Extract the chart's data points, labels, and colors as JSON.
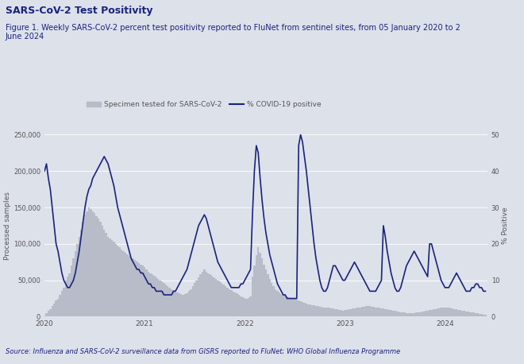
{
  "title": "SARS-CoV-2 Test Positivity",
  "subtitle": "Figure 1. Weekly SARS-CoV-2 percent test positivity reported to FluNet from sentinel sites, from 05 January 2020 to 2\nJune 2024",
  "source_text": "Source: Influenza and SARS-CoV-2 surveillance data from GISRS reported to FluNet; WHO Global Influenza Programme",
  "ylabel_left": "Processed samples",
  "ylabel_right": "% Positive",
  "legend_bar": "Specimen tested for SARS-CoV-2",
  "legend_line": "% COVID-19 positive",
  "bg_color": "#dde1ea",
  "bar_color": "#b8bcc8",
  "line_color": "#1a237e",
  "title_color": "#1a237e",
  "subtitle_color": "#1a237e",
  "source_color": "#1a237e",
  "tick_color": "#555555",
  "grid_color": "#ffffff",
  "ylim_left": [
    0,
    250000
  ],
  "ylim_right": [
    0,
    50
  ],
  "yticks_left": [
    0,
    50000,
    100000,
    150000,
    200000,
    250000
  ],
  "yticks_right": [
    0,
    10,
    20,
    30,
    40,
    50
  ],
  "xtick_labels": [
    "2020",
    "2021",
    "2022",
    "2023",
    "2024"
  ],
  "year_positions": [
    0,
    52,
    104,
    156,
    208
  ],
  "n_weeks": 230,
  "bar_data": [
    2000,
    5000,
    8000,
    10000,
    15000,
    18000,
    22000,
    25000,
    30000,
    35000,
    40000,
    50000,
    55000,
    60000,
    70000,
    80000,
    90000,
    100000,
    110000,
    120000,
    130000,
    140000,
    145000,
    150000,
    148000,
    145000,
    142000,
    138000,
    135000,
    130000,
    125000,
    120000,
    115000,
    110000,
    108000,
    105000,
    103000,
    100000,
    98000,
    95000,
    92000,
    90000,
    88000,
    86000,
    84000,
    82000,
    80000,
    78000,
    76000,
    74000,
    72000,
    70000,
    68000,
    65000,
    62000,
    60000,
    58000,
    56000,
    54000,
    52000,
    50000,
    48000,
    46000,
    44000,
    42000,
    40000,
    38000,
    36000,
    34000,
    33000,
    32000,
    31000,
    30000,
    31000,
    32000,
    35000,
    38000,
    42000,
    46000,
    50000,
    54000,
    58000,
    62000,
    65000,
    62000,
    60000,
    58000,
    56000,
    54000,
    52000,
    50000,
    48000,
    46000,
    44000,
    42000,
    40000,
    38000,
    36000,
    34000,
    33000,
    32000,
    30000,
    28000,
    27000,
    26000,
    25000,
    26000,
    28000,
    55000,
    70000,
    85000,
    95000,
    88000,
    80000,
    72000,
    65000,
    58000,
    52000,
    46000,
    42000,
    38000,
    35000,
    33000,
    31000,
    30000,
    29000,
    28000,
    27000,
    26000,
    25000,
    24000,
    23000,
    22000,
    21000,
    20000,
    19000,
    18000,
    17000,
    17000,
    16000,
    16000,
    15000,
    15000,
    14000,
    14000,
    13000,
    13000,
    12000,
    12000,
    11000,
    11000,
    10500,
    10000,
    9500,
    9000,
    8500,
    9000,
    9500,
    10000,
    10500,
    11000,
    11500,
    12000,
    12500,
    13000,
    13500,
    14000,
    14500,
    15000,
    14500,
    14000,
    13500,
    13000,
    12500,
    12000,
    11500,
    11000,
    10500,
    10000,
    9500,
    9000,
    8500,
    8000,
    7500,
    7000,
    6500,
    6000,
    5500,
    5000,
    5000,
    5000,
    5000,
    5000,
    5500,
    6000,
    6500,
    7000,
    7500,
    8000,
    8500,
    9000,
    9500,
    10000,
    10500,
    11000,
    11500,
    12000,
    12500,
    13000,
    12500,
    12000,
    11500,
    11000,
    10500,
    10000,
    9500,
    9000,
    8500,
    8000,
    7500,
    7000,
    6500,
    6000,
    5500,
    5000,
    4500,
    4000,
    3500,
    3000,
    3000
  ],
  "line_data": [
    40,
    42,
    38,
    35,
    30,
    25,
    20,
    18,
    15,
    12,
    10,
    9,
    8,
    8,
    9,
    10,
    12,
    15,
    18,
    22,
    26,
    30,
    33,
    35,
    36,
    38,
    39,
    40,
    41,
    42,
    43,
    44,
    43,
    42,
    40,
    38,
    36,
    33,
    30,
    28,
    26,
    24,
    22,
    20,
    18,
    16,
    15,
    14,
    13,
    13,
    12,
    12,
    11,
    10,
    9,
    9,
    8,
    8,
    7,
    7,
    7,
    7,
    6,
    6,
    6,
    6,
    6,
    7,
    7,
    8,
    9,
    10,
    11,
    12,
    13,
    15,
    17,
    19,
    21,
    23,
    25,
    26,
    27,
    28,
    27,
    25,
    23,
    21,
    19,
    17,
    15,
    14,
    13,
    12,
    11,
    10,
    9,
    8,
    8,
    8,
    8,
    8,
    9,
    9,
    10,
    11,
    12,
    13,
    28,
    40,
    47,
    45,
    38,
    32,
    27,
    23,
    20,
    17,
    15,
    13,
    11,
    9,
    8,
    7,
    6,
    6,
    5,
    5,
    5,
    5,
    5,
    5,
    47,
    50,
    48,
    44,
    40,
    35,
    30,
    25,
    20,
    16,
    13,
    10,
    8,
    7,
    7,
    8,
    10,
    12,
    14,
    14,
    13,
    12,
    11,
    10,
    10,
    11,
    12,
    13,
    14,
    15,
    14,
    13,
    12,
    11,
    10,
    9,
    8,
    7,
    7,
    7,
    7,
    8,
    9,
    10,
    25,
    22,
    18,
    15,
    12,
    10,
    8,
    7,
    7,
    8,
    10,
    12,
    14,
    15,
    16,
    17,
    18,
    17,
    16,
    15,
    14,
    13,
    12,
    11,
    20,
    20,
    18,
    16,
    14,
    12,
    10,
    9,
    8,
    8,
    8,
    9,
    10,
    11,
    12,
    11,
    10,
    9,
    8,
    7,
    7,
    7,
    8,
    8,
    9,
    9,
    8,
    8,
    7,
    7
  ]
}
